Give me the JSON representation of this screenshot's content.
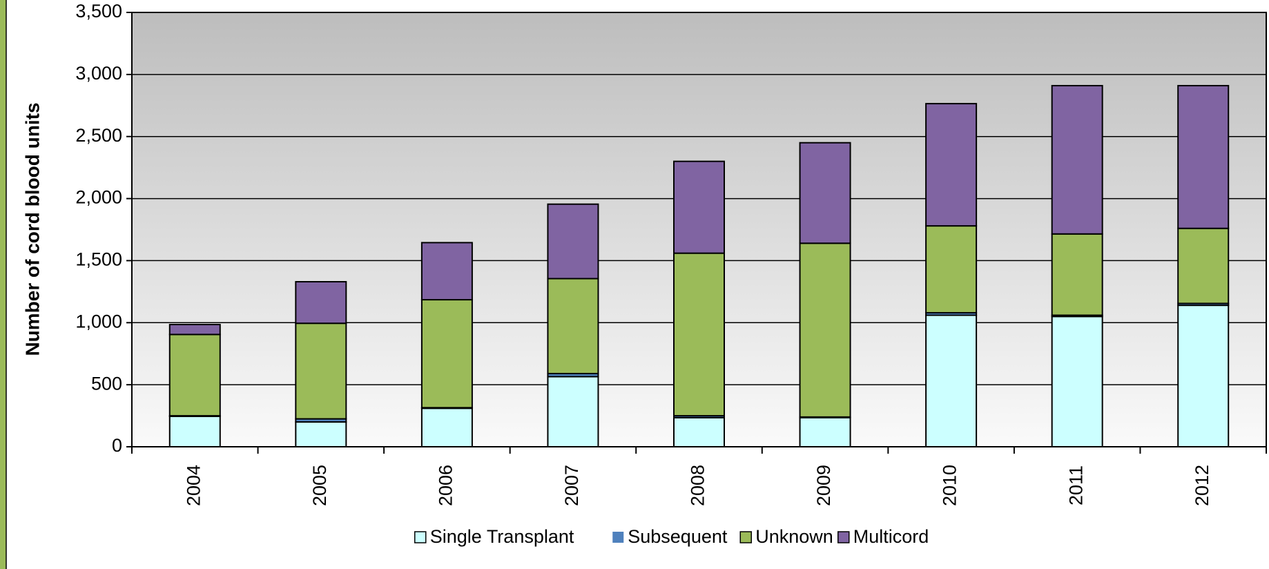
{
  "chart_data": {
    "type": "stacked_bar",
    "ylabel": "Number of cord blood units",
    "categories": [
      "2004",
      "2005",
      "2006",
      "2007",
      "2008",
      "2009",
      "2010",
      "2011",
      "2012"
    ],
    "series": [
      {
        "name": "Single Transplant",
        "color": "#ccffff",
        "values": [
          245,
          200,
          310,
          565,
          235,
          235,
          1060,
          1050,
          1140
        ]
      },
      {
        "name": "Subsequent",
        "color": "#4f81bd",
        "values": [
          5,
          25,
          5,
          25,
          15,
          5,
          20,
          10,
          15
        ]
      },
      {
        "name": "Unknown",
        "color": "#9bbb59",
        "values": [
          655,
          770,
          870,
          765,
          1310,
          1400,
          700,
          655,
          605
        ]
      },
      {
        "name": "Multicord",
        "color": "#8064a2",
        "values": [
          80,
          335,
          460,
          600,
          740,
          810,
          985,
          1195,
          1150
        ]
      }
    ],
    "ylim": [
      0,
      3500
    ],
    "yticks": [
      0,
      500,
      {
        "value": 1000,
        "label": "1,000"
      },
      {
        "value": 1500,
        "label": "1,500"
      },
      {
        "value": 2000,
        "label": "2,000"
      },
      {
        "value": 2500,
        "label": "2,500"
      },
      {
        "value": 3000,
        "label": "3,000"
      },
      {
        "value": 3500,
        "label": "3,500"
      }
    ],
    "grid": true,
    "legend": "bottom"
  }
}
